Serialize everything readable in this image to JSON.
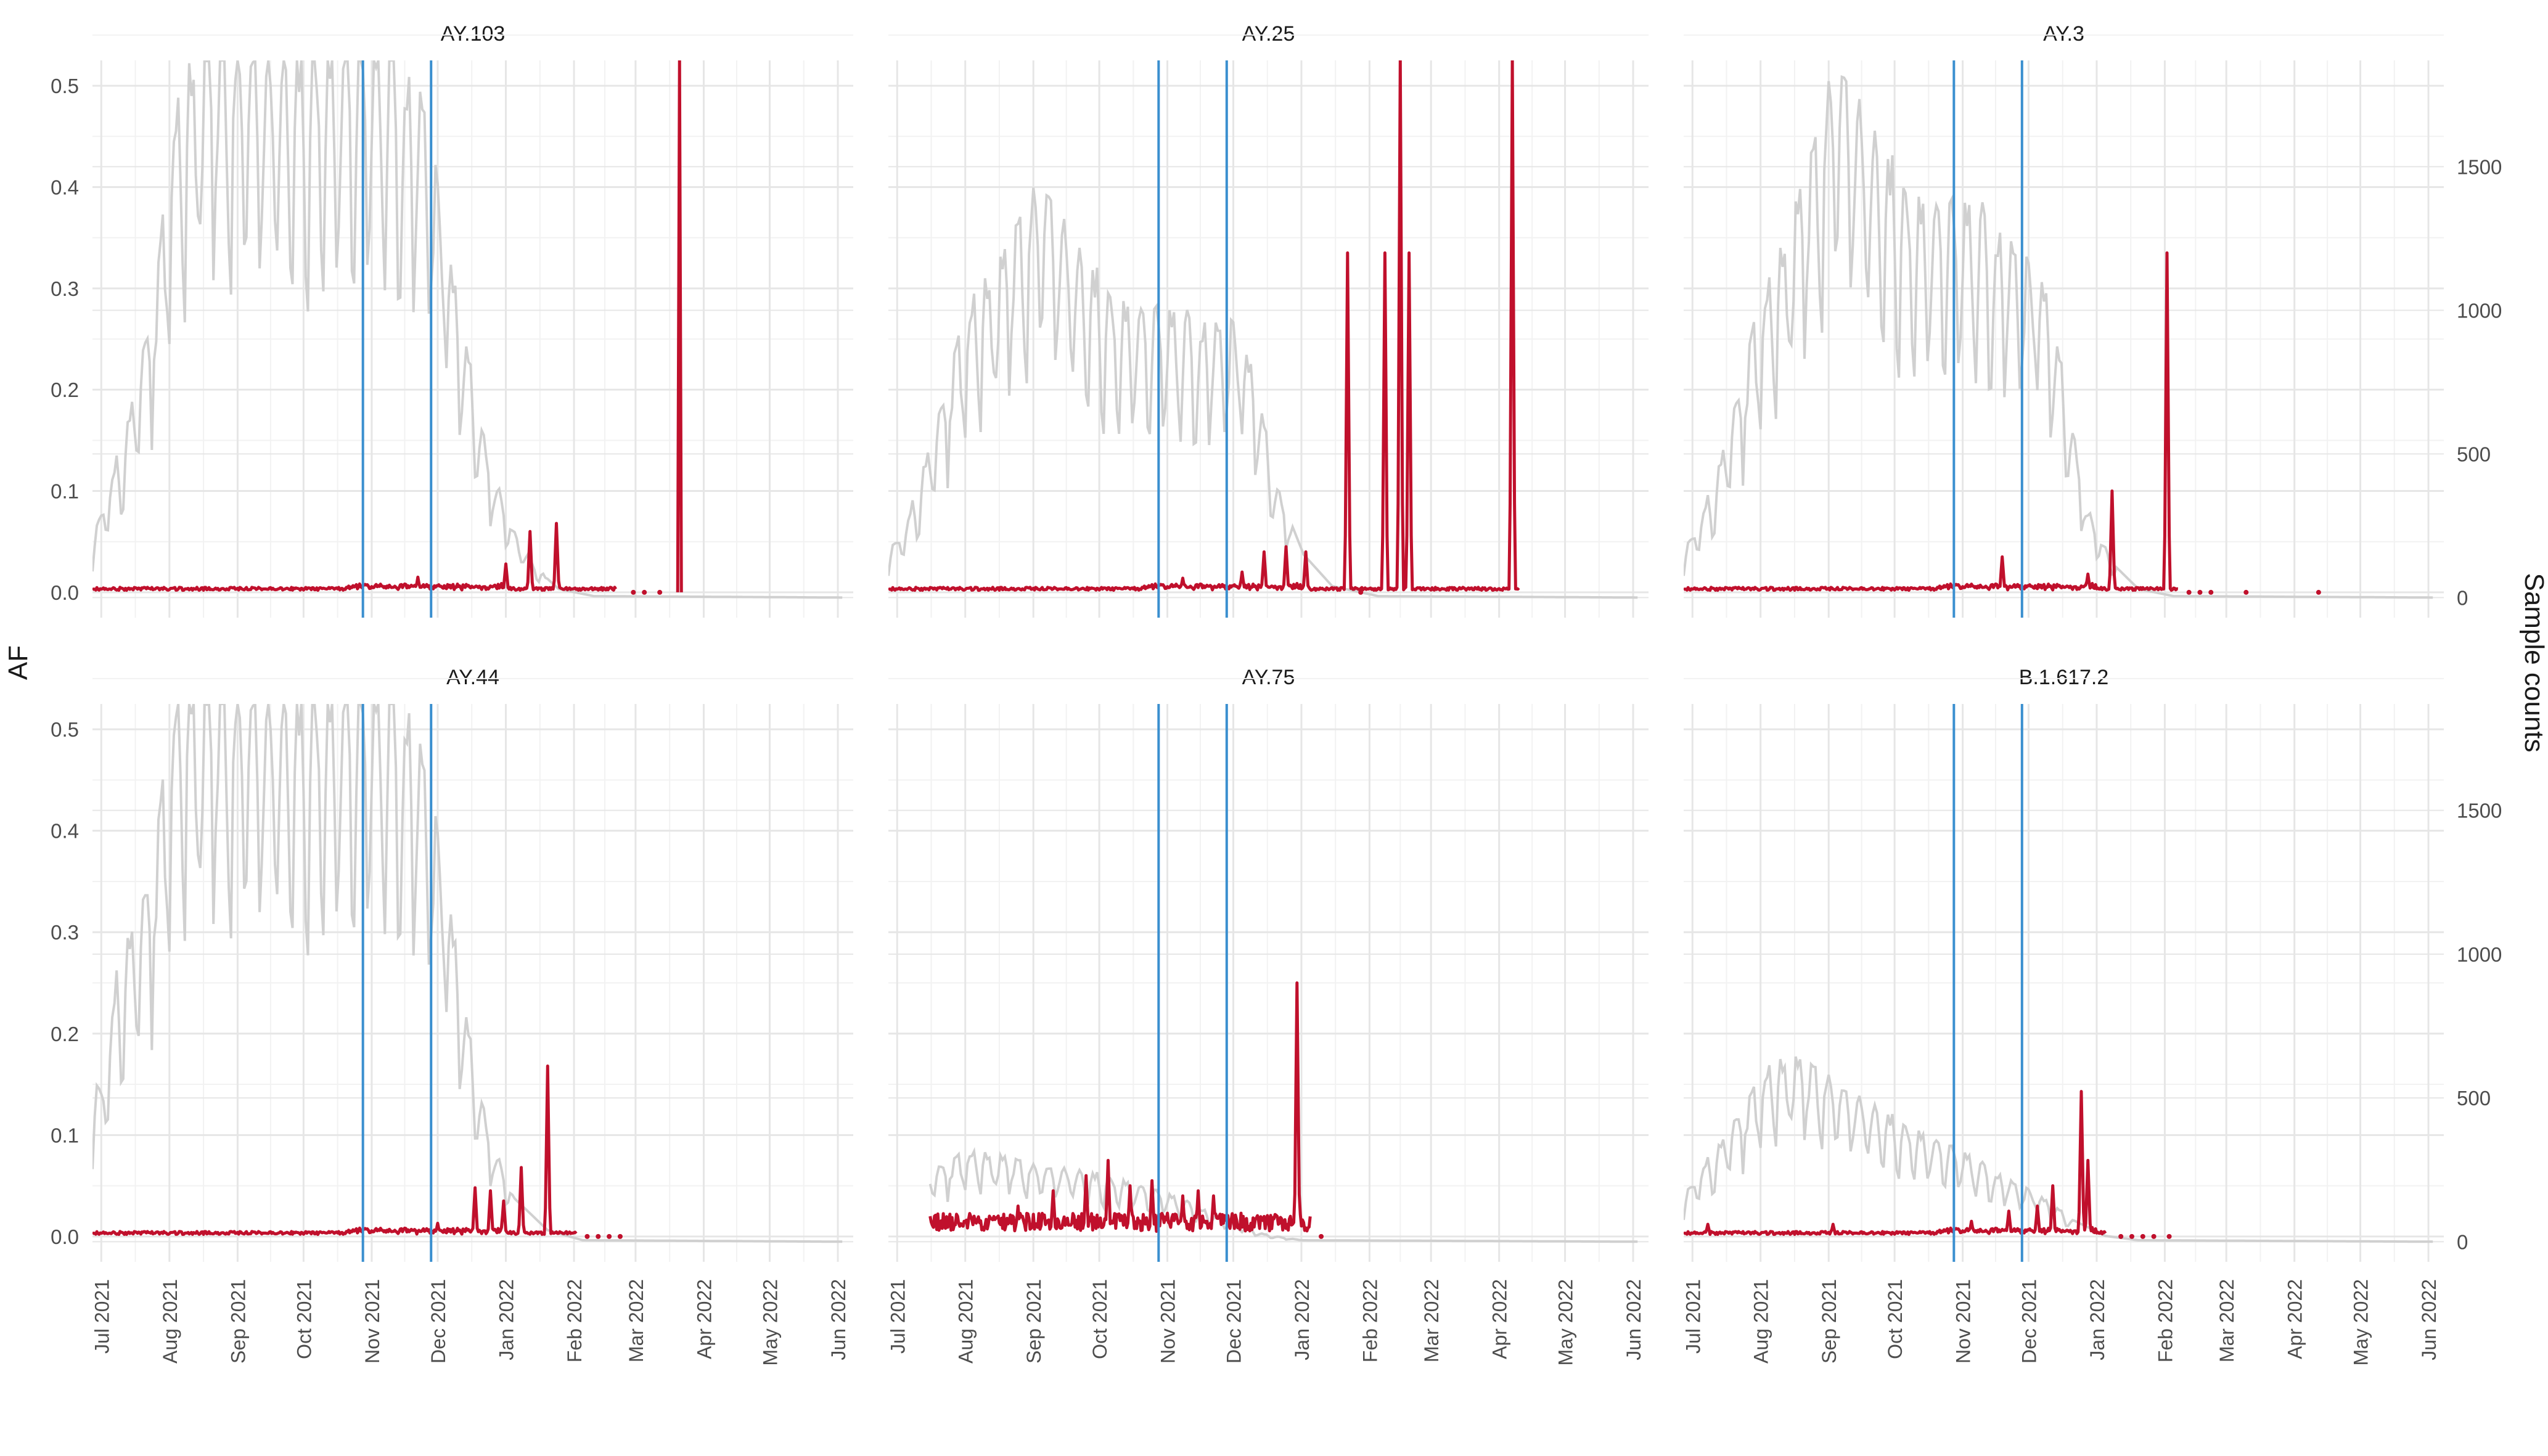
{
  "figure": {
    "y_left_label": "AF",
    "y_right_label": "Sample counts"
  },
  "colors": {
    "af_line": "#c0102c",
    "count_line": "#d0d0d0",
    "vline": "#3a8fcf",
    "grid_major": "#e6e6e6",
    "grid_minor": "#f2f2f2",
    "tick_text": "#4d4d4d"
  },
  "chart_data": {
    "type": "line",
    "layout": "faceted 2x3 small multiples, shared axes, dual y-axis",
    "x_ticks": [
      "Jul 2021",
      "Aug 2021",
      "Sep 2021",
      "Oct 2021",
      "Nov 2021",
      "Dec 2021",
      "Jan 2022",
      "Feb 2022",
      "Mar 2022",
      "Apr 2022",
      "May 2022",
      "Jun 2022"
    ],
    "x_range": [
      "2021-06-27",
      "2022-06-08"
    ],
    "y_left": {
      "label": "AF",
      "ticks": [
        "0.0",
        "0.1",
        "0.2",
        "0.3",
        "0.4",
        "0.5"
      ],
      "range": [
        -0.025,
        0.525
      ]
    },
    "y_right": {
      "label": "Sample counts",
      "ticks": [
        "0",
        "500",
        "1000",
        "1500"
      ],
      "range": [
        -70,
        1870
      ]
    },
    "vlines": [
      "2021-10-28",
      "2021-11-28"
    ],
    "grid": true,
    "legend": "none",
    "series_styles": {
      "af": "AF (left axis), dark red",
      "counts": "Sample counts (right axis), light grey"
    },
    "panels": [
      {
        "title": "AY.103",
        "af_end": "2022-02-20",
        "af_dots": [
          "2022-02-28",
          "2022-03-05",
          "2022-03-12"
        ],
        "counts_base": 1050,
        "counts_amp": 900,
        "counts_off": "2022-01-20",
        "af_peaks": [
          [
            "2021-11-22",
            0.015
          ],
          [
            "2022-01-01",
            0.028
          ],
          [
            "2022-01-12",
            0.06
          ],
          [
            "2022-01-24",
            0.068
          ],
          [
            "2022-03-21",
            0.525
          ]
        ],
        "counts_points": [
          [
            "2021-06-27",
            180
          ],
          [
            "2021-07-01",
            300
          ],
          [
            "2021-07-06",
            420
          ],
          [
            "2021-07-13",
            600
          ],
          [
            "2021-07-20",
            850
          ],
          [
            "2021-07-27",
            1150
          ],
          [
            "2021-08-03",
            1600
          ],
          [
            "2021-08-15",
            1870
          ],
          [
            "2021-11-10",
            1870
          ],
          [
            "2021-11-25",
            1700
          ],
          [
            "2021-12-05",
            1200
          ],
          [
            "2021-12-15",
            800
          ],
          [
            "2021-12-25",
            450
          ],
          [
            "2022-01-05",
            220
          ],
          [
            "2022-01-15",
            100
          ],
          [
            "2022-01-25",
            30
          ],
          [
            "2022-02-10",
            5
          ],
          [
            "2022-06-03",
            0
          ]
        ]
      },
      {
        "title": "AY.25",
        "af_end": "2022-04-10",
        "af_dots": [
          "2022-01-28"
        ],
        "counts_base": 820,
        "counts_amp": 430,
        "counts_off": "2021-12-28",
        "af_peaks": [
          [
            "2021-11-08",
            0.014
          ],
          [
            "2021-12-05",
            0.02
          ],
          [
            "2021-12-15",
            0.04
          ],
          [
            "2021-12-25",
            0.045
          ],
          [
            "2022-01-03",
            0.04
          ],
          [
            "2022-01-22",
            0.335
          ],
          [
            "2022-02-08",
            0.335
          ],
          [
            "2022-02-15",
            0.525
          ],
          [
            "2022-02-19",
            0.335
          ],
          [
            "2022-04-07",
            0.525
          ]
        ],
        "counts_points": [
          [
            "2021-06-27",
            150
          ],
          [
            "2021-07-05",
            250
          ],
          [
            "2021-07-12",
            420
          ],
          [
            "2021-07-19",
            600
          ],
          [
            "2021-07-26",
            820
          ],
          [
            "2021-08-05",
            1000
          ],
          [
            "2021-08-15",
            1100
          ],
          [
            "2021-08-25",
            1250
          ],
          [
            "2021-09-05",
            1450
          ],
          [
            "2021-09-20",
            1200
          ],
          [
            "2021-10-10",
            1000
          ],
          [
            "2021-11-05",
            950
          ],
          [
            "2021-12-01",
            930
          ],
          [
            "2021-12-10",
            760
          ],
          [
            "2021-12-20",
            400
          ],
          [
            "2022-01-02",
            150
          ],
          [
            "2022-01-15",
            40
          ],
          [
            "2022-02-05",
            5
          ],
          [
            "2022-06-03",
            0
          ]
        ]
      },
      {
        "title": "AY.3",
        "af_end": "2022-02-07",
        "af_dots": [
          "2022-02-12",
          "2022-02-17",
          "2022-02-22",
          "2022-03-10",
          "2022-04-12"
        ],
        "counts_base": 1150,
        "counts_amp": 520,
        "counts_off": "2022-01-10",
        "af_peaks": [
          [
            "2021-11-19",
            0.035
          ],
          [
            "2021-12-28",
            0.018
          ],
          [
            "2022-01-08",
            0.1
          ],
          [
            "2022-02-02",
            0.335
          ]
        ],
        "counts_points": [
          [
            "2021-06-27",
            150
          ],
          [
            "2021-07-05",
            280
          ],
          [
            "2021-07-12",
            420
          ],
          [
            "2021-07-20",
            650
          ],
          [
            "2021-07-28",
            900
          ],
          [
            "2021-08-10",
            1150
          ],
          [
            "2021-08-25",
            1500
          ],
          [
            "2021-09-05",
            1870
          ],
          [
            "2021-09-20",
            1600
          ],
          [
            "2021-10-10",
            1350
          ],
          [
            "2021-11-10",
            1300
          ],
          [
            "2021-11-25",
            1200
          ],
          [
            "2021-12-08",
            1050
          ],
          [
            "2021-12-18",
            700
          ],
          [
            "2021-12-28",
            300
          ],
          [
            "2022-01-08",
            120
          ],
          [
            "2022-01-20",
            30
          ],
          [
            "2022-02-05",
            5
          ],
          [
            "2022-06-03",
            0
          ]
        ]
      },
      {
        "title": "AY.44",
        "af_end": "2022-02-02",
        "af_dots": [
          "2022-02-07",
          "2022-02-12",
          "2022-02-17",
          "2022-02-22"
        ],
        "counts_base": 1050,
        "counts_amp": 900,
        "counts_off": "2022-01-05",
        "af_peaks": [
          [
            "2021-11-16",
            0.008
          ],
          [
            "2021-12-01",
            0.013
          ],
          [
            "2021-12-18",
            0.048
          ],
          [
            "2021-12-25",
            0.045
          ],
          [
            "2021-12-31",
            0.035
          ],
          [
            "2022-01-08",
            0.068
          ],
          [
            "2022-01-20",
            0.168
          ]
        ],
        "counts_points": [
          [
            "2021-06-27",
            500
          ],
          [
            "2021-07-02",
            550
          ],
          [
            "2021-07-06",
            800
          ],
          [
            "2021-07-10",
            1000
          ],
          [
            "2021-07-18",
            1100
          ],
          [
            "2021-07-26",
            1400
          ],
          [
            "2021-08-05",
            1870
          ],
          [
            "2021-11-15",
            1870
          ],
          [
            "2021-11-25",
            1650
          ],
          [
            "2021-12-05",
            1200
          ],
          [
            "2021-12-15",
            700
          ],
          [
            "2021-12-25",
            350
          ],
          [
            "2022-01-05",
            150
          ],
          [
            "2022-01-20",
            40
          ],
          [
            "2022-02-05",
            5
          ],
          [
            "2022-06-03",
            0
          ]
        ]
      },
      {
        "title": "AY.75",
        "af_start": "2021-07-16",
        "af_end": "2022-01-05",
        "af_dots": [
          "2022-01-10"
        ],
        "counts_base": 210,
        "counts_amp": 70,
        "counts_off": "2021-12-28",
        "af_peaks": [
          [
            "2021-07-16",
            0.02
          ],
          [
            "2021-08-05",
            0.02
          ],
          [
            "2021-08-25",
            0.03
          ],
          [
            "2021-09-10",
            0.045
          ],
          [
            "2021-09-25",
            0.06
          ],
          [
            "2021-10-05",
            0.075
          ],
          [
            "2021-10-15",
            0.05
          ],
          [
            "2021-10-25",
            0.055
          ],
          [
            "2021-11-08",
            0.04
          ],
          [
            "2021-11-15",
            0.045
          ],
          [
            "2021-11-22",
            0.04
          ],
          [
            "2021-12-30",
            0.25
          ]
        ],
        "counts_points": [
          [
            "2021-07-16",
            240
          ],
          [
            "2021-07-25",
            280
          ],
          [
            "2021-08-01",
            300
          ],
          [
            "2021-08-15",
            290
          ],
          [
            "2021-09-01",
            260
          ],
          [
            "2021-09-15",
            250
          ],
          [
            "2021-10-01",
            230
          ],
          [
            "2021-10-15",
            200
          ],
          [
            "2021-11-01",
            160
          ],
          [
            "2021-11-15",
            120
          ],
          [
            "2021-12-01",
            60
          ],
          [
            "2021-12-15",
            25
          ],
          [
            "2022-01-01",
            5
          ],
          [
            "2022-06-03",
            0
          ]
        ]
      },
      {
        "title": "B.1.617.2",
        "af_end": "2022-01-05",
        "af_dots": [
          "2022-01-12",
          "2022-01-17",
          "2022-01-22",
          "2022-01-27",
          "2022-02-03"
        ],
        "counts_base": 400,
        "counts_amp": 140,
        "counts_off": "2021-12-22",
        "af_peaks": [
          [
            "2021-07-08",
            0.012
          ],
          [
            "2021-09-03",
            0.012
          ],
          [
            "2021-11-05",
            0.015
          ],
          [
            "2021-11-22",
            0.025
          ],
          [
            "2021-12-05",
            0.03
          ],
          [
            "2021-12-12",
            0.05
          ],
          [
            "2021-12-25",
            0.143
          ],
          [
            "2021-12-28",
            0.075
          ]
        ],
        "counts_points": [
          [
            "2021-06-27",
            150
          ],
          [
            "2021-07-05",
            250
          ],
          [
            "2021-07-15",
            350
          ],
          [
            "2021-07-25",
            480
          ],
          [
            "2021-08-05",
            580
          ],
          [
            "2021-08-15",
            620
          ],
          [
            "2021-09-01",
            560
          ],
          [
            "2021-09-20",
            470
          ],
          [
            "2021-10-10",
            380
          ],
          [
            "2021-11-01",
            300
          ],
          [
            "2021-11-20",
            220
          ],
          [
            "2021-12-05",
            160
          ],
          [
            "2021-12-20",
            80
          ],
          [
            "2022-01-05",
            20
          ],
          [
            "2022-01-20",
            5
          ],
          [
            "2022-06-03",
            0
          ]
        ]
      }
    ]
  }
}
